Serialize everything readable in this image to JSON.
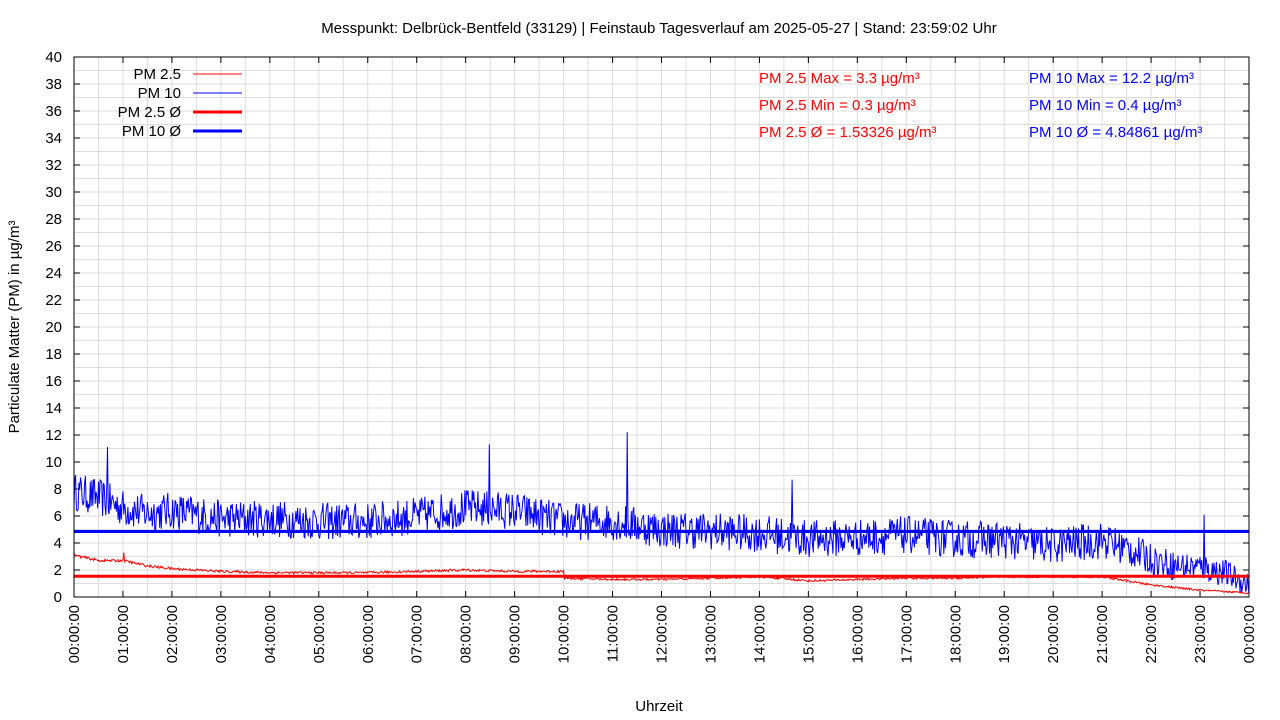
{
  "chart_data": {
    "type": "line",
    "title": "Messpunkt: Delbrück-Bentfeld (33129) | Feinstaub Tagesverlauf am 2025-05-27 | Stand: 23:59:02 Uhr",
    "xlabel": "Uhrzeit",
    "ylabel": "Particulate Matter (PM) in µg/m³",
    "ylim": [
      0,
      40
    ],
    "xlim_hours": [
      0,
      24
    ],
    "grid": true,
    "legend_position": "top-left",
    "y_ticks": [
      "0",
      "2",
      "4",
      "6",
      "8",
      "10",
      "12",
      "14",
      "16",
      "18",
      "20",
      "22",
      "24",
      "26",
      "28",
      "30",
      "32",
      "34",
      "36",
      "38",
      "40"
    ],
    "x_ticks": [
      "00:00:00",
      "01:00:00",
      "02:00:00",
      "03:00:00",
      "04:00:00",
      "05:00:00",
      "06:00:00",
      "07:00:00",
      "08:00:00",
      "09:00:00",
      "10:00:00",
      "11:00:00",
      "12:00:00",
      "13:00:00",
      "14:00:00",
      "15:00:00",
      "16:00:00",
      "17:00:00",
      "18:00:00",
      "19:00:00",
      "20:00:00",
      "21:00:00",
      "22:00:00",
      "23:00:00",
      "00:00:00"
    ],
    "series": [
      {
        "name": "PM 2.5",
        "color": "#ff0000",
        "x_hours": [
          0,
          0.5,
          1,
          1.5,
          2,
          3,
          4,
          5,
          6,
          7,
          8,
          9,
          10,
          10.01,
          11,
          12,
          13,
          14,
          15,
          16,
          17,
          18,
          19,
          20,
          21,
          21.5,
          22,
          22.5,
          23,
          23.5,
          24
        ],
        "values": [
          3.1,
          2.7,
          2.7,
          2.3,
          2.1,
          1.9,
          1.8,
          1.8,
          1.8,
          1.9,
          2.0,
          1.9,
          1.9,
          1.4,
          1.3,
          1.3,
          1.4,
          1.5,
          1.2,
          1.3,
          1.4,
          1.4,
          1.5,
          1.5,
          1.5,
          1.2,
          0.9,
          0.7,
          0.5,
          0.4,
          0.3
        ]
      },
      {
        "name": "PM 10",
        "color": "#0000ff",
        "x_hours": [
          0,
          0.5,
          1,
          1.5,
          2,
          3,
          4,
          5,
          6,
          7,
          8,
          9,
          10,
          11,
          12,
          13,
          14,
          15,
          16,
          17,
          18,
          19,
          20,
          21,
          21.5,
          22,
          22.5,
          23,
          23.5,
          24
        ],
        "values": [
          7.8,
          7.4,
          6.6,
          6.2,
          6.4,
          5.8,
          5.8,
          5.6,
          5.6,
          6.0,
          6.6,
          6.4,
          5.6,
          5.6,
          5.0,
          4.9,
          4.7,
          4.3,
          4.4,
          4.6,
          4.3,
          4.2,
          3.8,
          4.2,
          3.6,
          2.8,
          2.3,
          2.2,
          1.8,
          0.9
        ]
      },
      {
        "name": "PM 2.5 Ø",
        "color": "#ff0000",
        "average": 1.53326
      },
      {
        "name": "PM 10 Ø",
        "color": "#0000ff",
        "average": 4.84861
      }
    ],
    "peaks": [
      {
        "series": "PM 10",
        "x_hours": 0.68,
        "value": 11.1
      },
      {
        "series": "PM 10",
        "x_hours": 8.48,
        "value": 11.3
      },
      {
        "series": "PM 10",
        "x_hours": 11.3,
        "value": 12.2
      },
      {
        "series": "PM 10",
        "x_hours": 14.66,
        "value": 8.7
      },
      {
        "series": "PM 10",
        "x_hours": 23.08,
        "value": 6.1
      },
      {
        "series": "PM 2.5",
        "x_hours": 1.02,
        "value": 3.3
      }
    ],
    "stats": {
      "pm25_max": "PM 2.5 Max = 3.3 µg/m³",
      "pm25_min": "PM 2.5 Min = 0.3 µg/m³",
      "pm25_avg": "PM 2.5 Ø = 1.53326 µg/m³",
      "pm10_max": "PM 10 Max = 12.2 µg/m³",
      "pm10_min": "PM 10 Min = 0.4 µg/m³",
      "pm10_avg": "PM 10 Ø = 4.84861 µg/m³"
    },
    "legend": {
      "pm25": "PM 2.5",
      "pm10": "PM 10",
      "pm25_avg": "PM 2.5 Ø",
      "pm10_avg": "PM 10 Ø"
    }
  }
}
